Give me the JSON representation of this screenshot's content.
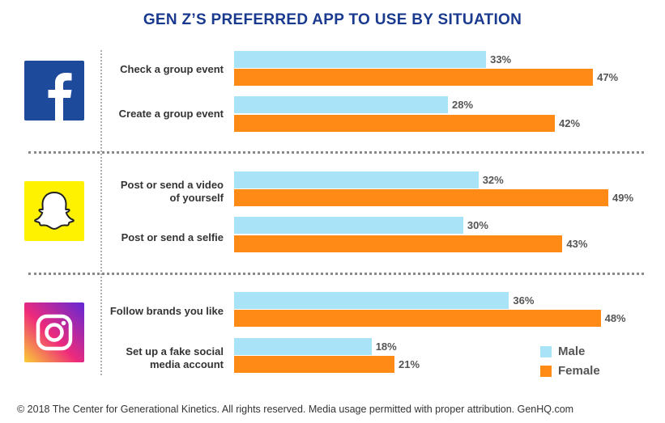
{
  "title": "GEN Z’S PREFERRED APP TO USE BY SITUATION",
  "footer": "© 2018 The Center for Generational Kinetics. All rights reserved. Media usage permitted with proper attribution. GenHQ.com",
  "colors": {
    "male": "#a8e3f8",
    "female": "#ff8a16",
    "title": "#1a3a8f"
  },
  "groups": [
    {
      "app_icon": "facebook-icon",
      "color": "#1e4a9c"
    },
    {
      "app_icon": "snapchat-icon",
      "color": "#fff200"
    },
    {
      "app_icon": "instagram-icon",
      "color": "#ee2a7b"
    }
  ],
  "chart_data": {
    "type": "bar",
    "orientation": "horizontal",
    "categories": [
      "Check a group event",
      "Create a group event",
      "Post or send a video\nof yourself",
      "Post or send a selfie",
      "Follow brands you like",
      "Set up a fake social\nmedia account"
    ],
    "series": [
      {
        "name": "Male",
        "values": [
          33,
          28,
          32,
          30,
          36,
          18
        ],
        "labels": [
          "33%",
          "28%",
          "32%",
          "30%",
          "36%",
          "18%"
        ]
      },
      {
        "name": "Female",
        "values": [
          47,
          42,
          49,
          43,
          48,
          21
        ],
        "labels": [
          "47%",
          "42%",
          "49%",
          "43%",
          "48%",
          "21%"
        ]
      }
    ],
    "xlim": [
      0,
      50
    ],
    "grid": false,
    "legend": "bottom-right"
  }
}
